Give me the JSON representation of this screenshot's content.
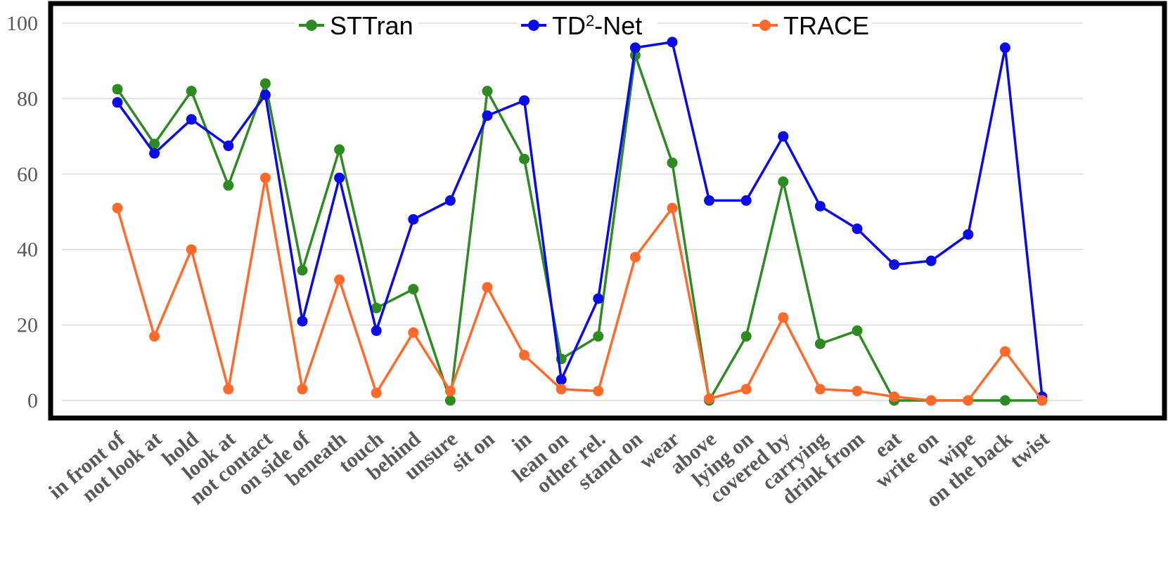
{
  "chart_data": {
    "type": "line",
    "categories": [
      "in front of",
      "not look at",
      "hold",
      "look at",
      "not contact",
      "on side of",
      "beneath",
      "touch",
      "behind",
      "unsure",
      "sit on",
      "in",
      "lean on",
      "other rel.",
      "stand on",
      "wear",
      "above",
      "lying on",
      "covered by",
      "carrying",
      "drink from",
      "eat",
      "write on",
      "wipe",
      "on the back",
      "twist"
    ],
    "series": [
      {
        "name": "STTran",
        "color": "#2e8b22",
        "values": [
          82.5,
          68,
          82,
          57,
          84,
          34.5,
          66.5,
          24.5,
          29.5,
          0,
          82,
          64,
          11,
          17,
          91.5,
          63,
          0,
          17,
          58,
          15,
          18.5,
          0,
          0,
          0,
          0,
          0
        ]
      },
      {
        "name": "TD²-Net",
        "name_base": "TD",
        "name_sup": "2",
        "name_rest": "-Net",
        "color": "#0a0ae6",
        "values": [
          79,
          65.5,
          74.5,
          67.5,
          81,
          21,
          59,
          18.5,
          48,
          53,
          75.5,
          79.5,
          5.5,
          27,
          93.5,
          95,
          53,
          53,
          70,
          51.5,
          45.5,
          36,
          37,
          44,
          93.5,
          1
        ]
      },
      {
        "name": "TRACE",
        "color": "#ff6a2b",
        "values": [
          51,
          17,
          40,
          3,
          59,
          3,
          32,
          2,
          18,
          2.5,
          30,
          12,
          3,
          2.5,
          38,
          51,
          0.5,
          3,
          22,
          3,
          2.5,
          1,
          0,
          0,
          13,
          0
        ]
      }
    ],
    "ylim": [
      0,
      100
    ],
    "yticks": [
      0,
      20,
      40,
      60,
      80,
      100
    ],
    "legend": "top",
    "grid": true
  }
}
